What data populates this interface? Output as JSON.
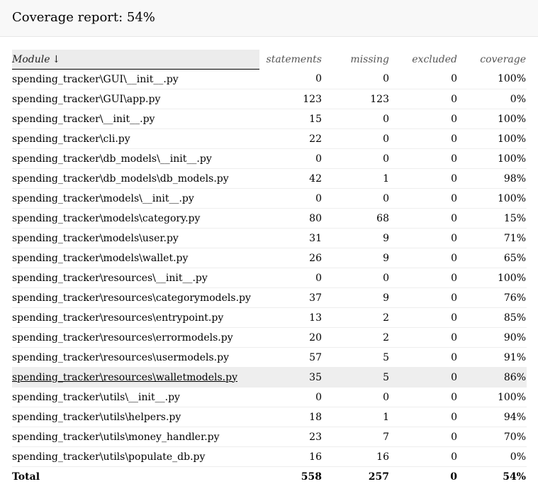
{
  "title": "Coverage report: 54%",
  "columns": {
    "module": "Module",
    "sort_arrow": "↓",
    "statements": "statements",
    "missing": "missing",
    "excluded": "excluded",
    "coverage": "coverage"
  },
  "rows": [
    {
      "name": "spending_tracker\\GUI\\__init__.py",
      "statements": "0",
      "missing": "0",
      "excluded": "0",
      "coverage": "100%"
    },
    {
      "name": "spending_tracker\\GUI\\app.py",
      "statements": "123",
      "missing": "123",
      "excluded": "0",
      "coverage": "0%"
    },
    {
      "name": "spending_tracker\\__init__.py",
      "statements": "15",
      "missing": "0",
      "excluded": "0",
      "coverage": "100%"
    },
    {
      "name": "spending_tracker\\cli.py",
      "statements": "22",
      "missing": "0",
      "excluded": "0",
      "coverage": "100%"
    },
    {
      "name": "spending_tracker\\db_models\\__init__.py",
      "statements": "0",
      "missing": "0",
      "excluded": "0",
      "coverage": "100%"
    },
    {
      "name": "spending_tracker\\db_models\\db_models.py",
      "statements": "42",
      "missing": "1",
      "excluded": "0",
      "coverage": "98%"
    },
    {
      "name": "spending_tracker\\models\\__init__.py",
      "statements": "0",
      "missing": "0",
      "excluded": "0",
      "coverage": "100%"
    },
    {
      "name": "spending_tracker\\models\\category.py",
      "statements": "80",
      "missing": "68",
      "excluded": "0",
      "coverage": "15%"
    },
    {
      "name": "spending_tracker\\models\\user.py",
      "statements": "31",
      "missing": "9",
      "excluded": "0",
      "coverage": "71%"
    },
    {
      "name": "spending_tracker\\models\\wallet.py",
      "statements": "26",
      "missing": "9",
      "excluded": "0",
      "coverage": "65%"
    },
    {
      "name": "spending_tracker\\resources\\__init__.py",
      "statements": "0",
      "missing": "0",
      "excluded": "0",
      "coverage": "100%"
    },
    {
      "name": "spending_tracker\\resources\\categorymodels.py",
      "statements": "37",
      "missing": "9",
      "excluded": "0",
      "coverage": "76%"
    },
    {
      "name": "spending_tracker\\resources\\entrypoint.py",
      "statements": "13",
      "missing": "2",
      "excluded": "0",
      "coverage": "85%"
    },
    {
      "name": "spending_tracker\\resources\\errormodels.py",
      "statements": "20",
      "missing": "2",
      "excluded": "0",
      "coverage": "90%"
    },
    {
      "name": "spending_tracker\\resources\\usermodels.py",
      "statements": "57",
      "missing": "5",
      "excluded": "0",
      "coverage": "91%"
    },
    {
      "name": "spending_tracker\\resources\\walletmodels.py",
      "statements": "35",
      "missing": "5",
      "excluded": "0",
      "coverage": "86%"
    },
    {
      "name": "spending_tracker\\utils\\__init__.py",
      "statements": "0",
      "missing": "0",
      "excluded": "0",
      "coverage": "100%"
    },
    {
      "name": "spending_tracker\\utils\\helpers.py",
      "statements": "18",
      "missing": "1",
      "excluded": "0",
      "coverage": "94%"
    },
    {
      "name": "spending_tracker\\utils\\money_handler.py",
      "statements": "23",
      "missing": "7",
      "excluded": "0",
      "coverage": "70%"
    },
    {
      "name": "spending_tracker\\utils\\populate_db.py",
      "statements": "16",
      "missing": "16",
      "excluded": "0",
      "coverage": "0%"
    }
  ],
  "highlighted_row": 15,
  "total": {
    "label": "Total",
    "statements": "558",
    "missing": "257",
    "excluded": "0",
    "coverage": "54%"
  }
}
